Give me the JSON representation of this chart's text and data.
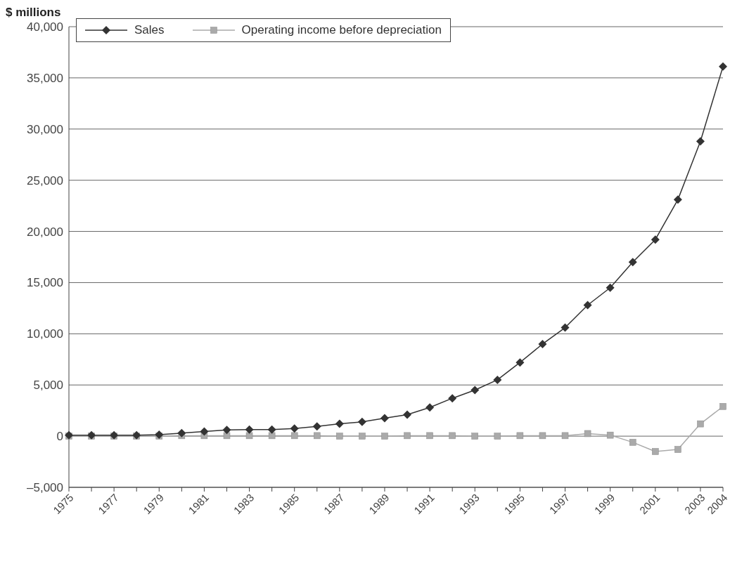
{
  "chart_data": {
    "type": "line",
    "ylabel": "$ millions",
    "categories": [
      "1975",
      null,
      "1977",
      null,
      "1979",
      null,
      "1981",
      null,
      "1983",
      null,
      "1985",
      null,
      "1987",
      null,
      "1989",
      null,
      "1991",
      null,
      "1993",
      null,
      "1995",
      null,
      "1997",
      null,
      "1999",
      null,
      "2001",
      null,
      "2003",
      "2004"
    ],
    "series": [
      {
        "name": "Sales",
        "color": "#333333",
        "marker": "diamond",
        "values": [
          100,
          100,
          100,
          100,
          150,
          300,
          450,
          600,
          650,
          650,
          750,
          950,
          1200,
          1400,
          1750,
          2100,
          2800,
          3700,
          4500,
          5500,
          7200,
          9000,
          10600,
          12800,
          14500,
          17000,
          19200,
          23100,
          28800,
          36100
        ]
      },
      {
        "name": "Operating income before depreciation",
        "color": "#aaaaaa",
        "marker": "square",
        "values": [
          0,
          0,
          0,
          0,
          0,
          50,
          50,
          50,
          50,
          50,
          50,
          50,
          0,
          0,
          0,
          50,
          50,
          50,
          0,
          0,
          50,
          50,
          50,
          250,
          100,
          -600,
          -1500,
          -1300,
          1200,
          2900
        ]
      }
    ],
    "ylim": [
      -5000,
      40000
    ],
    "yticks": [
      {
        "value": -5000,
        "label": "–5,000"
      },
      {
        "value": 0,
        "label": "0"
      },
      {
        "value": 5000,
        "label": "5,000"
      },
      {
        "value": 10000,
        "label": "10,000"
      },
      {
        "value": 15000,
        "label": "15,000"
      },
      {
        "value": 20000,
        "label": "20,000"
      },
      {
        "value": 25000,
        "label": "25,000"
      },
      {
        "value": 30000,
        "label": "30,000"
      },
      {
        "value": 35000,
        "label": "35,000"
      },
      {
        "value": 40000,
        "label": "40,000"
      }
    ],
    "grid": "y",
    "legend": "top left"
  }
}
